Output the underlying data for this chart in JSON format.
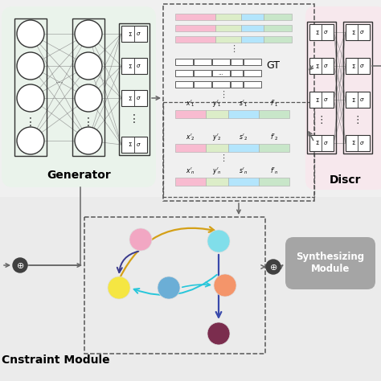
{
  "bg_color": "#f0f0f0",
  "gen_bg": "#e8f5e9",
  "disc_bg": "#fce4ec",
  "synth_bg": "#9e9e9e",
  "node_pink": [
    0.27,
    0.57,
    "#f0a8c8"
  ],
  "node_yellow": [
    0.22,
    0.7,
    "#f5e642"
  ],
  "node_blue": [
    0.4,
    0.7,
    "#6baed6"
  ],
  "node_cyan": [
    0.55,
    0.57,
    "#80deea"
  ],
  "node_orange": [
    0.58,
    0.7,
    "#f4956a"
  ],
  "node_purple": [
    0.55,
    0.86,
    "#7b2d4e"
  ],
  "gt_colored_colors": [
    [
      "#f8bbd0",
      "#dcedc8",
      "#b3e5fc",
      "#c8e6c9"
    ],
    [
      "#f8bbd0",
      "#dcedc8",
      "#b3e5fc",
      "#c8e6c9"
    ],
    [
      "#f8bbd0",
      "#dcedc8",
      "#b3e5fc",
      "#c8e6c9"
    ]
  ],
  "bot_bar_colors": [
    "#f8bbd0",
    "#dcedc8",
    "#b3e5fc",
    "#c8e6c9"
  ],
  "arrow_yellow": "#d4a017",
  "arrow_dark_blue": "#3949ab",
  "arrow_cyan": "#26c6da",
  "title_generator": "Generator",
  "title_discriminator": "Discr",
  "title_synthesizing": "Synthesizing\nModule",
  "title_constraint": "nstraint Module",
  "gt_label": "GT"
}
